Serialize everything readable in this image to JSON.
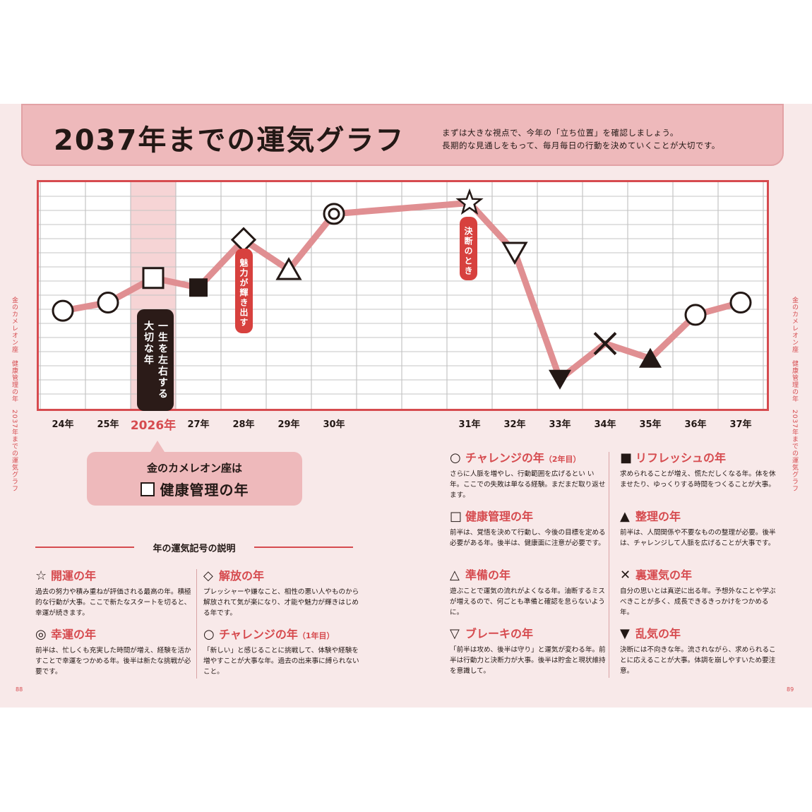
{
  "header": {
    "title": "2037年までの運気グラフ",
    "intro_line1": "まずは大きな視点で、今年の「立ち位置」を確認しましょう。",
    "intro_line2": "長期的な見通しをもって、毎月毎日の行動を決めていくことが大切です。"
  },
  "chart_data": {
    "type": "line",
    "title": "2037年までの運気グラフ",
    "categories": [
      "24年",
      "25年",
      "2026年",
      "27年",
      "28年",
      "29年",
      "30年",
      "31年",
      "32年",
      "33年",
      "34年",
      "35年",
      "36年",
      "37年"
    ],
    "x_positions": [
      0,
      1,
      2,
      3,
      4,
      5,
      6,
      9,
      10,
      11,
      12,
      13,
      14,
      15
    ],
    "values": [
      6.2,
      6.8,
      8.6,
      7.9,
      11.4,
      9.2,
      13.3,
      14.1,
      10.5,
      1.2,
      3.8,
      2.7,
      5.9,
      6.8
    ],
    "symbols": [
      "circle",
      "circle",
      "square",
      "filled-square",
      "diamond",
      "triangle",
      "double-circle",
      "star",
      "inverted-triangle",
      "filled-inverted-triangle",
      "cross",
      "filled-triangle",
      "circle",
      "circle"
    ],
    "ylim": [
      0,
      15
    ],
    "grid": true,
    "highlight_category": "2026年",
    "line_color": "#e08f92",
    "frame_color": "#d64b4f",
    "annotations": [
      {
        "at": "2026年",
        "text_line1": "一生を左右する",
        "text_line2": "大切な年",
        "style": "dark"
      },
      {
        "at": "28年",
        "text": "魅力が輝き出す",
        "style": "red"
      },
      {
        "at": "31年",
        "text": "決断のとき",
        "style": "red"
      }
    ]
  },
  "callout": {
    "line1": "金のカメレオン座は",
    "line2": "健康管理の年"
  },
  "legend": {
    "heading": "年の運気記号の説明",
    "items": [
      {
        "sym": "☆",
        "name": "開運の年",
        "note": "",
        "desc": "過去の努力や積み重ねが評価される最高の年。積極的な行動が大事。ここで新たなスタートを切ると、幸運が続きます。"
      },
      {
        "sym": "◇",
        "name": "解放の年",
        "note": "",
        "desc": "プレッシャーや嫌なこと、相性の悪い人やものから解放されて気が楽になり、才能や魅力が輝きはじめる年です。"
      },
      {
        "sym": "◎",
        "name": "幸運の年",
        "note": "",
        "desc": "前半は、忙しくも充実した時間が増え、経験を活かすことで幸運をつかめる年。後半は新たな挑戦が必要です。"
      },
      {
        "sym": "○",
        "name": "チャレンジの年",
        "note": "（1年目）",
        "desc": "「新しい」と感じることに挑戦して、体験や経験を増やすことが大事な年。過去の出来事に縛られないこと。"
      },
      {
        "sym": "○",
        "name": "チャレンジの年",
        "note": "（2年目）",
        "desc": "さらに人脈を増やし、行動範囲を広げるとい い年。ここでの失敗は単なる経験。まだまだ取り返せます。"
      },
      {
        "sym": "■",
        "name": "リフレッシュの年",
        "note": "",
        "desc": "求められることが増え、慌ただしくなる年。体を休ませたり、ゆっくりする時間をつくることが大事。"
      },
      {
        "sym": "□",
        "name": "健康管理の年",
        "note": "",
        "desc": "前半は、覚悟を決めて行動し、今後の目標を定める必要がある年。後半は、健康面に注意が必要です。"
      },
      {
        "sym": "▲",
        "name": "整理の年",
        "note": "",
        "desc": "前半は、人間関係や不要なものの整理が必要。後半は、チャレンジして人脈を広げることが大事です。"
      },
      {
        "sym": "△",
        "name": "準備の年",
        "note": "",
        "desc": "遊ぶことで運気の流れがよくなる年。油断するミスが増えるので、何ごとも準備と確認を怠らないように。"
      },
      {
        "sym": "✕",
        "name": "裏運気の年",
        "note": "",
        "desc": "自分の思いとは真逆に出る年。予想外なことや学ぶべきことが多く、成長できるきっかけをつかめる年。"
      },
      {
        "sym": "▽",
        "name": "ブレーキの年",
        "note": "",
        "desc": "「前半は攻め、後半は守り」と運気が変わる年。前半は行動力と決断力が大事。後半は貯金と現状維持を意識して。"
      },
      {
        "sym": "▼",
        "name": "乱気の年",
        "note": "",
        "desc": "決断には不向きな年。流されながら、求められることに応えることが大事。体調を崩しやすいため要注意。"
      }
    ]
  },
  "side": {
    "left": "金のカメレオン座　健康管理の年",
    "left2": "2037年までの運気グラフ",
    "right": "金のカメレオン座　健康管理の年",
    "right2": "2037年までの運気グラフ"
  },
  "pages": {
    "left": "88",
    "right": "89"
  }
}
